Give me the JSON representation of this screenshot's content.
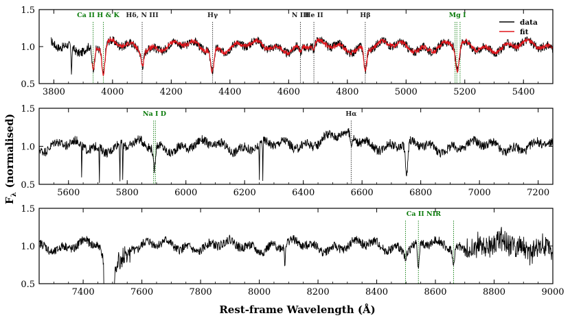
{
  "figure": {
    "ylabel": "F",
    "ylabel_sub": "λ",
    "ylabel_suffix": "(normalised)",
    "xlabel": "Rest-frame Wavelength (Å)"
  },
  "colors": {
    "data": "#000000",
    "fit": "#e0161c",
    "line_blue_green": "#0a7a0a",
    "line_black": "#222222"
  },
  "chart_data": [
    {
      "type": "line",
      "xlim": [
        3750,
        5500
      ],
      "ylim": [
        0.5,
        1.5
      ],
      "xticks": [
        3800,
        4000,
        4200,
        4400,
        4600,
        4800,
        5000,
        5200,
        5400
      ],
      "yticks": [
        0.5,
        1.0,
        1.5
      ],
      "legend": {
        "placement": "top-right",
        "entries": [
          {
            "name": "data",
            "color": "#000000"
          },
          {
            "name": "fit",
            "color": "#e0161c"
          }
        ]
      },
      "series": [
        {
          "name": "data",
          "x_start": 3790,
          "x_end": 5500,
          "baseline": 1.0
        },
        {
          "name": "fit",
          "x_start": 3930,
          "x_end": 5500,
          "baseline": 1.0
        }
      ],
      "absorption": [
        {
          "x": 3860,
          "depth": 0.35,
          "width": 2
        },
        {
          "x": 3934,
          "depth": 0.32,
          "width": 6
        },
        {
          "x": 3969,
          "depth": 0.38,
          "width": 7
        },
        {
          "x": 4102,
          "depth": 0.18,
          "width": 6
        },
        {
          "x": 4340,
          "depth": 0.32,
          "width": 8
        },
        {
          "x": 4640,
          "depth": 0.1,
          "width": 6
        },
        {
          "x": 4686,
          "depth": 0.08,
          "width": 5
        },
        {
          "x": 4861,
          "depth": 0.3,
          "width": 7
        },
        {
          "x": 5175,
          "depth": 0.35,
          "width": 9
        }
      ],
      "lines": [
        {
          "x": 3934,
          "color": "green"
        },
        {
          "x": 3969,
          "color": "green"
        },
        {
          "x": 4101,
          "color": "black"
        },
        {
          "x": 4341,
          "color": "black"
        },
        {
          "x": 4640,
          "color": "black"
        },
        {
          "x": 4686,
          "color": "black"
        },
        {
          "x": 4861,
          "color": "black"
        },
        {
          "x": 5167,
          "color": "green"
        },
        {
          "x": 5173,
          "color": "green"
        },
        {
          "x": 5184,
          "color": "green"
        }
      ],
      "labels": [
        {
          "text": "Ca II H & K",
          "x": 3951,
          "color": "green"
        },
        {
          "text": "Hδ, N III",
          "x": 4101,
          "color": "black"
        },
        {
          "text": "Hγ",
          "x": 4341,
          "color": "black"
        },
        {
          "text": "N III",
          "x": 4640,
          "color": "black"
        },
        {
          "text": "He II",
          "x": 4686,
          "color": "black"
        },
        {
          "text": "Hβ",
          "x": 4861,
          "color": "black"
        },
        {
          "text": "Mg I",
          "x": 5175,
          "color": "green"
        }
      ]
    },
    {
      "type": "line",
      "xlim": [
        5500,
        7250
      ],
      "ylim": [
        0.5,
        1.5
      ],
      "xticks": [
        5600,
        5800,
        6000,
        6200,
        6400,
        6600,
        6800,
        7000,
        7200
      ],
      "yticks": [
        0.5,
        1.0,
        1.5
      ],
      "series": [
        {
          "name": "data",
          "x_start": 5500,
          "x_end": 7250,
          "baseline": 1.0
        }
      ],
      "absorption": [
        {
          "x": 5645,
          "depth": 0.5,
          "width": 1
        },
        {
          "x": 5705,
          "depth": 0.5,
          "width": 1
        },
        {
          "x": 5775,
          "depth": 0.5,
          "width": 1
        },
        {
          "x": 5785,
          "depth": 0.5,
          "width": 1
        },
        {
          "x": 5892,
          "depth": 0.3,
          "width": 5
        },
        {
          "x": 6250,
          "depth": 0.5,
          "width": 1
        },
        {
          "x": 6262,
          "depth": 0.5,
          "width": 1
        },
        {
          "x": 6563,
          "depth": 0.12,
          "width": 5
        },
        {
          "x": 6752,
          "depth": 0.45,
          "width": 6
        }
      ],
      "lines": [
        {
          "x": 5890,
          "color": "green"
        },
        {
          "x": 5896,
          "color": "green"
        },
        {
          "x": 6563,
          "color": "black"
        }
      ],
      "labels": [
        {
          "text": "Na I D",
          "x": 5893,
          "color": "green"
        },
        {
          "text": "Hα",
          "x": 6563,
          "color": "black"
        }
      ]
    },
    {
      "type": "line",
      "xlim": [
        7250,
        9000
      ],
      "ylim": [
        0.5,
        1.5
      ],
      "xticks": [
        7400,
        7600,
        7800,
        8000,
        8200,
        8400,
        8600,
        8800,
        9000
      ],
      "yticks": [
        0.5,
        1.0,
        1.5
      ],
      "series": [
        {
          "name": "data",
          "x_start": 7250,
          "x_end": 9000,
          "baseline": 1.0
        }
      ],
      "absorption": [
        {
          "x": 7485,
          "depth": 0.6,
          "width": 18
        },
        {
          "x": 8087,
          "depth": 0.25,
          "width": 2
        },
        {
          "x": 8498,
          "depth": 0.15,
          "width": 4
        },
        {
          "x": 8542,
          "depth": 0.3,
          "width": 5
        },
        {
          "x": 8662,
          "depth": 0.25,
          "width": 5
        }
      ],
      "lines": [
        {
          "x": 8498,
          "color": "green"
        },
        {
          "x": 8542,
          "color": "green"
        },
        {
          "x": 8662,
          "color": "green"
        }
      ],
      "labels": [
        {
          "text": "Ca II NIR",
          "x": 8560,
          "color": "green"
        }
      ]
    }
  ]
}
